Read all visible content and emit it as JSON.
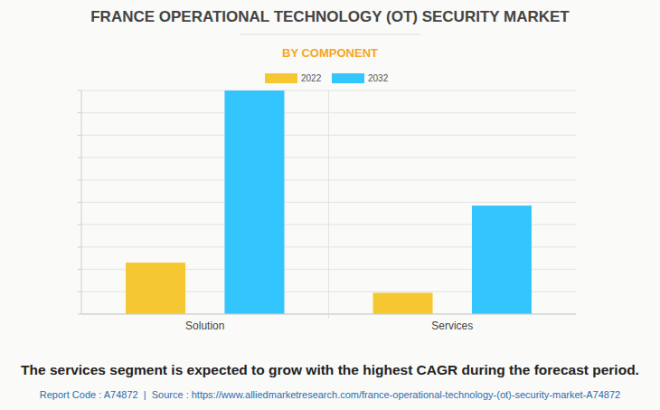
{
  "chart_data": {
    "type": "bar",
    "title": "FRANCE OPERATIONAL TECHNOLOGY (OT) SECURITY MARKET",
    "subtitle": "BY COMPONENT",
    "categories": [
      "Solution",
      "Services"
    ],
    "series": [
      {
        "name": "2022",
        "color": "#f5c832",
        "values": [
          2.3,
          0.95
        ]
      },
      {
        "name": "2032",
        "color": "#33c5fd",
        "values": [
          10,
          4.85
        ]
      }
    ],
    "ylim": [
      0,
      10
    ],
    "yticks": [
      0,
      1,
      2,
      3,
      4,
      5,
      6,
      7,
      8,
      9,
      10
    ],
    "grid": true,
    "legend": "top",
    "tick_labels": "x",
    "annotation": "The services segment is expected to grow with the highest CAGR during the forecast period.",
    "source": "Report Code : A74872  |  Source : https://www.alliedmarketresearch.com/france-operational-technology-(ot)-security-market-A74872"
  }
}
